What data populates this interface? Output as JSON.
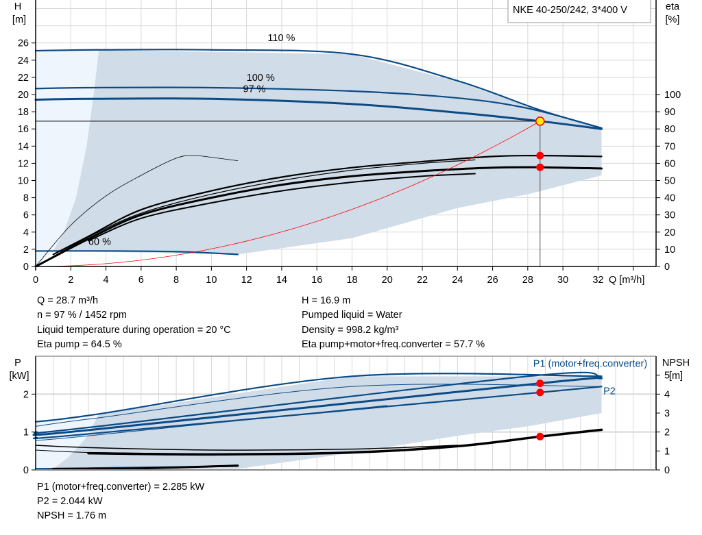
{
  "legend_title": "NKE 40-250/242, 3*400 V",
  "colors": {
    "curve": "#0a4a86",
    "region": "#d0dce8",
    "region_light": "#eef5fc",
    "system": "#ff0000",
    "point": "#ff0000",
    "duty": "#ffee00",
    "grid": "#d8d8d8"
  },
  "chart_data": [
    {
      "type": "line",
      "title": "",
      "xlabel": "Q [m³/h]",
      "ylabel": "H\n[m]",
      "ylabel_lines": [
        "H",
        "[m]"
      ],
      "y2label_lines": [
        "eta",
        "[%]"
      ],
      "xlim": [
        0,
        35.3
      ],
      "ylim": [
        0,
        31
      ],
      "y2lim": [
        0,
        155
      ],
      "xticks": [
        0,
        2,
        4,
        6,
        8,
        10,
        12,
        14,
        16,
        18,
        20,
        22,
        24,
        26,
        28,
        30,
        32
      ],
      "yticks": [
        0,
        2,
        4,
        6,
        8,
        10,
        12,
        14,
        16,
        18,
        20,
        22,
        24,
        26
      ],
      "y2ticks": [
        0,
        10,
        20,
        30,
        40,
        50,
        60,
        70,
        80,
        90,
        100
      ],
      "grid": true,
      "region": [
        [
          3.6,
          25.2
        ],
        [
          18,
          24.7
        ],
        [
          24,
          21.5
        ],
        [
          28.7,
          18.2
        ],
        [
          32.2,
          16.1
        ],
        [
          32.2,
          10.6
        ],
        [
          28,
          8.4
        ],
        [
          24,
          6.8
        ],
        [
          18,
          3.3
        ],
        [
          11.5,
          1.4
        ],
        [
          1,
          1.8
        ],
        [
          1.6,
          4
        ],
        [
          2.3,
          8
        ],
        [
          2.9,
          14
        ],
        [
          3.3,
          20
        ],
        [
          3.6,
          25.2
        ]
      ],
      "region_light": [
        [
          0,
          25.1
        ],
        [
          3.6,
          25.2
        ],
        [
          3.3,
          20
        ],
        [
          2.9,
          14
        ],
        [
          2.3,
          8
        ],
        [
          1.6,
          4
        ],
        [
          1,
          1.8
        ],
        [
          0,
          0
        ]
      ],
      "series": [
        {
          "axis": "left",
          "width": 2.2,
          "color": "curve",
          "points": [
            [
              0,
              25.1
            ],
            [
              3.5,
              25.2
            ],
            [
              10,
              25.2
            ],
            [
              18,
              24.7
            ],
            [
              24,
              21.6
            ],
            [
              28.7,
              18.2
            ],
            [
              32.2,
              16.1
            ]
          ]
        },
        {
          "axis": "left",
          "width": 2.2,
          "color": "curve",
          "points": [
            [
              0,
              20.7
            ],
            [
              3,
              20.8
            ],
            [
              10,
              20.8
            ],
            [
              18,
              20.4
            ],
            [
              24,
              19.6
            ],
            [
              28,
              18.4
            ],
            [
              32.2,
              16.1
            ]
          ]
        },
        {
          "axis": "left",
          "width": 3,
          "color": "curve",
          "points": [
            [
              0,
              19.4
            ],
            [
              3,
              19.5
            ],
            [
              10,
              19.5
            ],
            [
              18,
              18.9
            ],
            [
              24,
              17.9
            ],
            [
              28.7,
              16.9
            ],
            [
              32.2,
              16.0
            ]
          ]
        },
        {
          "axis": "left",
          "width": 2.2,
          "color": "curve",
          "points": [
            [
              0,
              1.8
            ],
            [
              5,
              1.8
            ],
            [
              8.5,
              1.7
            ],
            [
              11.5,
              1.4
            ]
          ]
        },
        {
          "axis": "right",
          "width": 0.8,
          "color": "#000000",
          "points": [
            [
              0,
              0
            ],
            [
              2,
              24
            ],
            [
              4,
              41
            ],
            [
              6,
              53
            ],
            [
              8,
              63
            ],
            [
              9,
              64.5
            ],
            [
              10,
              63.5
            ],
            [
              11.5,
              61.5
            ]
          ]
        },
        {
          "axis": "right",
          "width": 2.2,
          "color": "#000000",
          "points": [
            [
              1,
              7
            ],
            [
              3,
              17.5
            ],
            [
              6,
              33
            ],
            [
              10,
              44
            ],
            [
              14,
              52
            ],
            [
              18,
              57.5
            ],
            [
              22,
              61
            ],
            [
              26,
              64
            ],
            [
              28.7,
              64.5
            ],
            [
              32.2,
              64
            ]
          ]
        },
        {
          "axis": "right",
          "width": 1.2,
          "color": "#000000",
          "points": [
            [
              0,
              0
            ],
            [
              3,
              17
            ],
            [
              6,
              31
            ],
            [
              10,
              42
            ],
            [
              14,
              50
            ],
            [
              18,
              56
            ],
            [
              22,
              60
            ],
            [
              25,
              62
            ]
          ]
        },
        {
          "axis": "right",
          "width": 3,
          "color": "#000000",
          "points": [
            [
              0,
              0
            ],
            [
              3,
              16
            ],
            [
              6,
              30
            ],
            [
              10,
              40
            ],
            [
              14,
              47.5
            ],
            [
              18,
              52.5
            ],
            [
              22,
              55.5
            ],
            [
              26,
              57.5
            ],
            [
              28.7,
              57.7
            ],
            [
              32.2,
              57
            ]
          ]
        },
        {
          "axis": "right",
          "width": 2,
          "color": "#000000",
          "points": [
            [
              3,
              15
            ],
            [
              6,
              28
            ],
            [
              10,
              37
            ],
            [
              14,
              44
            ],
            [
              18,
              49
            ],
            [
              22,
              52.5
            ],
            [
              25,
              54
            ]
          ]
        }
      ],
      "system_curve": {
        "h_at_duty": 16.9,
        "q_at_duty": 28.7
      },
      "duty_point": {
        "q": 28.7,
        "h": 16.9
      },
      "eta_points": [
        64.5,
        57.7
      ],
      "curve_labels": [
        {
          "text": "110 %",
          "q": 13.2,
          "h": 26.2
        },
        {
          "text": "100 %",
          "q": 12,
          "h": 21.6
        },
        {
          "text": "97 %",
          "q": 11.8,
          "h": 20.3
        },
        {
          "text": "60 %",
          "q": 3.0,
          "h": 2.5
        }
      ]
    },
    {
      "type": "line",
      "title": "",
      "xlabel": "",
      "ylabel_lines": [
        "P",
        "[kW]"
      ],
      "y2label_lines": [
        "NPSH",
        "[m]"
      ],
      "xlim": [
        0,
        35.3
      ],
      "ylim": [
        0,
        3.0
      ],
      "y2lim": [
        0,
        6.0
      ],
      "yticks": [
        0,
        1,
        2
      ],
      "y2ticks": [
        0,
        1,
        2,
        3,
        4,
        5
      ],
      "grid": true,
      "region": [
        [
          3.6,
          1.47
        ],
        [
          18,
          2.47
        ],
        [
          32.2,
          2.47
        ],
        [
          32.2,
          1.5
        ],
        [
          28,
          1.15
        ],
        [
          24,
          0.9
        ],
        [
          18,
          0.45
        ],
        [
          11.5,
          0.03
        ],
        [
          1,
          0.03
        ],
        [
          1.9,
          0.35
        ],
        [
          2.8,
          0.8
        ],
        [
          3.6,
          1.47
        ]
      ],
      "region_light": [
        [
          0,
          1.27
        ],
        [
          3.6,
          1.47
        ],
        [
          2.8,
          0.8
        ],
        [
          1.9,
          0.35
        ],
        [
          1,
          0.03
        ],
        [
          0,
          0.02
        ]
      ],
      "series": [
        {
          "axis": "left",
          "width": 2.2,
          "color": "curve",
          "points": [
            [
              0,
              1.27
            ],
            [
              3.5,
              1.47
            ],
            [
              18,
              2.47
            ],
            [
              32.2,
              2.47
            ]
          ]
        },
        {
          "axis": "left",
          "width": 1,
          "color": "curve",
          "points": [
            [
              0,
              1.15
            ],
            [
              3.5,
              1.37
            ],
            [
              18,
              2.2
            ],
            [
              32.2,
              2.2
            ]
          ]
        },
        {
          "axis": "left",
          "width": 2.2,
          "color": "curve",
          "points": [
            [
              0,
              1.0
            ],
            [
              3,
              1.12
            ],
            [
              28,
              2.47
            ],
            [
              32.2,
              2.47
            ]
          ]
        },
        {
          "axis": "left",
          "width": 3,
          "color": "curve",
          "points": [
            [
              0,
              0.95
            ],
            [
              3,
              1.05
            ],
            [
              28.7,
              2.285
            ],
            [
              32.2,
              2.42
            ]
          ]
        },
        {
          "axis": "left",
          "width": 2.2,
          "color": "curve",
          "points": [
            [
              0,
              0.85
            ],
            [
              3,
              0.95
            ],
            [
              28.7,
              2.044
            ],
            [
              32.2,
              2.2
            ]
          ]
        },
        {
          "axis": "left",
          "width": 1,
          "color": "curve",
          "points": [
            [
              0,
              0.78
            ],
            [
              3,
              0.9
            ],
            [
              20,
              1.7
            ]
          ]
        },
        {
          "axis": "left",
          "width": 2.2,
          "color": "curve",
          "points": [
            [
              0,
              0.03
            ],
            [
              11.5,
              0.1
            ]
          ]
        },
        {
          "axis": "right",
          "width": 1.5,
          "color": "#000000",
          "points": [
            [
              0,
              1.3
            ],
            [
              3,
              1.18
            ],
            [
              10,
              1.05
            ],
            [
              18,
              1.1
            ],
            [
              24,
              1.3
            ]
          ]
        },
        {
          "axis": "right",
          "width": 1,
          "color": "#000000",
          "points": [
            [
              0,
              1.05
            ],
            [
              3,
              0.92
            ],
            [
              10,
              0.85
            ]
          ]
        },
        {
          "axis": "right",
          "width": 3.5,
          "color": "#000000",
          "points": [
            [
              3,
              0.88
            ],
            [
              10,
              0.82
            ],
            [
              18,
              0.92
            ],
            [
              24,
              1.25
            ],
            [
              28.7,
              1.76
            ],
            [
              32.2,
              2.12
            ]
          ]
        },
        {
          "axis": "right",
          "width": 3,
          "color": "#000000",
          "points": [
            [
              1,
              0.06
            ],
            [
              6,
              0.08
            ],
            [
              11.5,
              0.23
            ]
          ]
        }
      ],
      "points": [
        {
          "q": 28.7,
          "p": 2.285
        },
        {
          "q": 28.7,
          "p": 2.044
        }
      ],
      "npsh_point": {
        "q": 28.7,
        "npsh": 1.76
      },
      "curve_labels": [
        {
          "text": "P1 (motor+freq.converter)",
          "align": "end",
          "q": 34.8,
          "p": 2.72
        },
        {
          "text": "P2",
          "align": "start",
          "q": 32.3,
          "p": 2.0
        }
      ]
    }
  ],
  "readout_top": {
    "q": "Q = 28.7 m³/h",
    "n": "n = 97 % / 1452 rpm",
    "temp": "Liquid temperature during operation = 20 °C",
    "eta_pump": "Eta pump = 64.5 %",
    "h": "H = 16.9 m",
    "liquid": "Pumped liquid = Water",
    "density": "Density = 998.2 kg/m³",
    "eta_total": "Eta pump+motor+freq.converter = 57.7 %"
  },
  "readout_bottom": {
    "p1": "P1 (motor+freq.converter) = 2.285 kW",
    "p2": "P2 = 2.044 kW",
    "npsh": "NPSH = 1.76 m"
  }
}
